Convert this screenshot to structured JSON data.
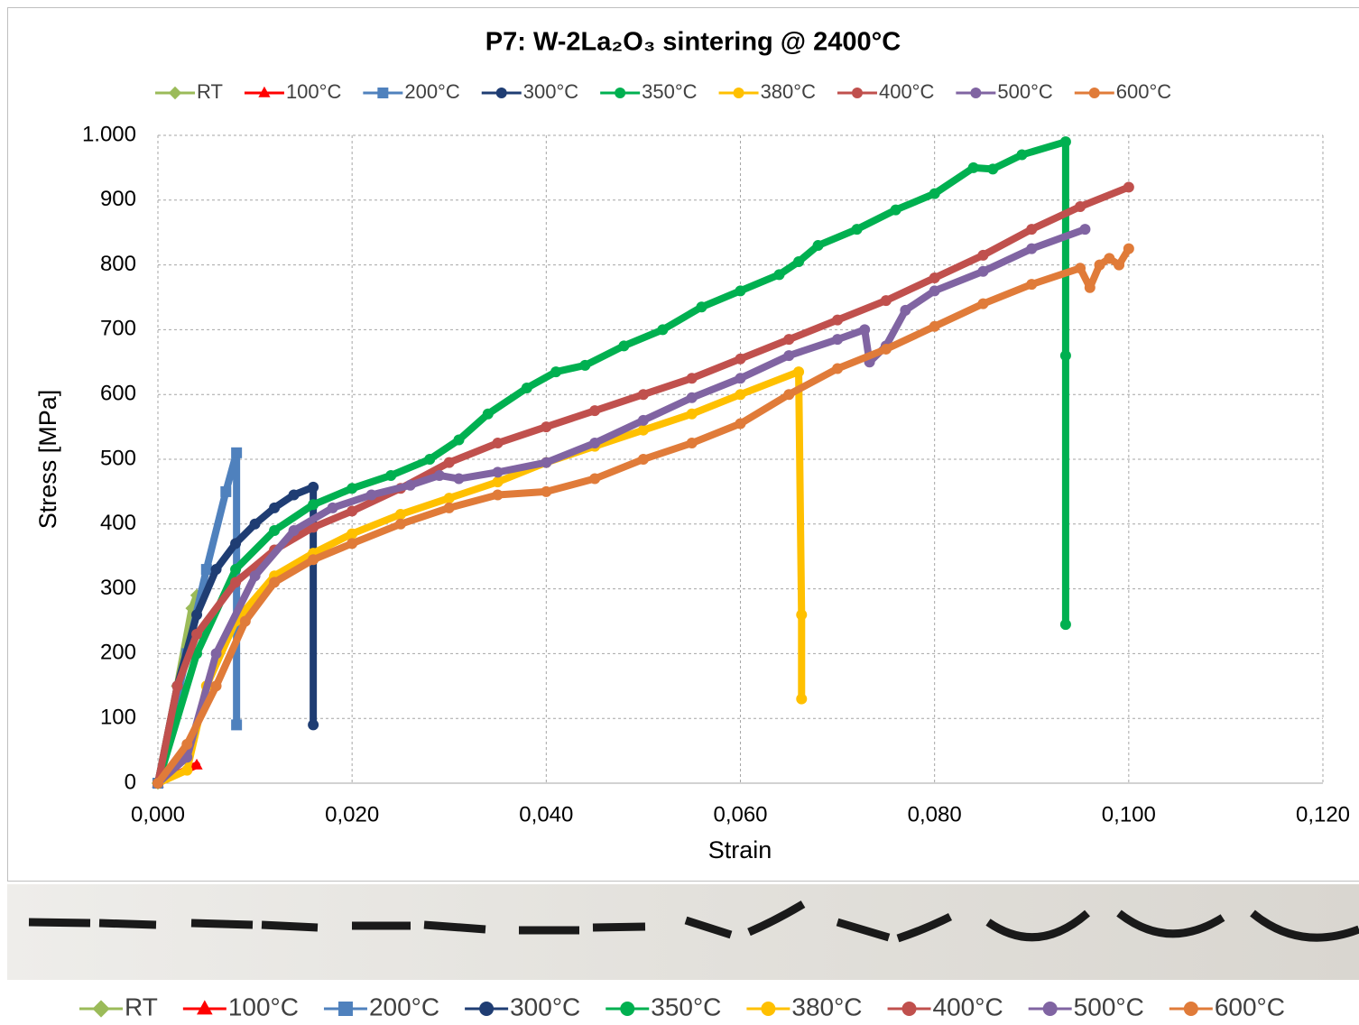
{
  "chart_data": {
    "type": "line",
    "title": "P7: W-2La₂O₃ sintering @ 2400°C",
    "x_label": "Strain",
    "y_label": "Stress [MPa]",
    "xlim": [
      0,
      0.12
    ],
    "ylim": [
      0,
      1000
    ],
    "xticks": [
      {
        "value": 0,
        "label": "0,000"
      },
      {
        "value": 0.02,
        "label": "0,020"
      },
      {
        "value": 0.04,
        "label": "0,040"
      },
      {
        "value": 0.06,
        "label": "0,060"
      },
      {
        "value": 0.08,
        "label": "0,080"
      },
      {
        "value": 0.1,
        "label": "0,100"
      },
      {
        "value": 0.12,
        "label": "0,120"
      }
    ],
    "yticks": [
      0,
      100,
      200,
      300,
      400,
      500,
      600,
      700,
      800,
      900,
      {
        "value": 1000,
        "label": "1.000"
      }
    ],
    "grid": true,
    "series": [
      {
        "name": "RT",
        "color": "#9bbb59",
        "marker": "diamond",
        "x": [
          0,
          0.002,
          0.0035,
          0.004
        ],
        "values": [
          0,
          150,
          270,
          290
        ]
      },
      {
        "name": "100°C",
        "color": "#ff0000",
        "marker": "triangle",
        "x": [
          0,
          0.004
        ],
        "values": [
          0,
          28
        ]
      },
      {
        "name": "200°C",
        "color": "#4f81bd",
        "marker": "square",
        "x": [
          0,
          0.003,
          0.005,
          0.007,
          0.0081,
          0.0081
        ],
        "values": [
          0,
          200,
          330,
          450,
          510,
          90
        ]
      },
      {
        "name": "300°C",
        "color": "#1f3d73",
        "marker": "circle",
        "x": [
          0,
          0.002,
          0.004,
          0.006,
          0.008,
          0.01,
          0.012,
          0.014,
          0.016,
          0.016
        ],
        "values": [
          0,
          150,
          260,
          330,
          370,
          400,
          425,
          445,
          457,
          90
        ]
      },
      {
        "name": "350°C",
        "color": "#00b050",
        "marker": "circle",
        "x": [
          0,
          0.004,
          0.008,
          0.012,
          0.016,
          0.02,
          0.024,
          0.028,
          0.031,
          0.034,
          0.038,
          0.041,
          0.044,
          0.048,
          0.052,
          0.056,
          0.06,
          0.064,
          0.066,
          0.068,
          0.072,
          0.076,
          0.08,
          0.084,
          0.086,
          0.089,
          0.0935,
          0.0935,
          0.0935
        ],
        "values": [
          0,
          200,
          330,
          390,
          430,
          455,
          475,
          500,
          530,
          570,
          610,
          635,
          645,
          675,
          700,
          735,
          760,
          785,
          805,
          830,
          855,
          885,
          910,
          950,
          948,
          970,
          990,
          660,
          245
        ]
      },
      {
        "name": "380°C",
        "color": "#ffc000",
        "marker": "circle",
        "x": [
          0,
          0.003,
          0.005,
          0.008,
          0.012,
          0.016,
          0.02,
          0.025,
          0.03,
          0.035,
          0.04,
          0.045,
          0.05,
          0.055,
          0.06,
          0.066,
          0.0663,
          0.0663
        ],
        "values": [
          0,
          20,
          150,
          250,
          320,
          355,
          385,
          415,
          440,
          465,
          495,
          520,
          545,
          570,
          600,
          635,
          260,
          130
        ]
      },
      {
        "name": "400°C",
        "color": "#c0504d",
        "marker": "circle",
        "x": [
          0,
          0.002,
          0.004,
          0.008,
          0.012,
          0.016,
          0.02,
          0.025,
          0.03,
          0.035,
          0.04,
          0.045,
          0.05,
          0.055,
          0.06,
          0.065,
          0.07,
          0.075,
          0.08,
          0.085,
          0.09,
          0.095,
          0.1
        ],
        "values": [
          0,
          150,
          230,
          310,
          360,
          395,
          420,
          455,
          495,
          525,
          550,
          575,
          600,
          625,
          655,
          685,
          715,
          745,
          780,
          815,
          855,
          890,
          920
        ]
      },
      {
        "name": "500°C",
        "color": "#8064a2",
        "marker": "circle",
        "x": [
          0,
          0.003,
          0.006,
          0.01,
          0.014,
          0.018,
          0.022,
          0.026,
          0.029,
          0.031,
          0.035,
          0.04,
          0.045,
          0.05,
          0.055,
          0.06,
          0.065,
          0.07,
          0.0728,
          0.0733,
          0.075,
          0.077,
          0.08,
          0.085,
          0.09,
          0.0955
        ],
        "values": [
          0,
          40,
          200,
          320,
          390,
          425,
          445,
          460,
          475,
          470,
          480,
          495,
          525,
          560,
          595,
          625,
          660,
          685,
          700,
          650,
          675,
          730,
          760,
          790,
          825,
          855
        ]
      },
      {
        "name": "600°C",
        "color": "#e07b39",
        "marker": "circle",
        "x": [
          0,
          0.003,
          0.006,
          0.009,
          0.012,
          0.016,
          0.02,
          0.025,
          0.03,
          0.035,
          0.04,
          0.045,
          0.05,
          0.055,
          0.06,
          0.065,
          0.07,
          0.075,
          0.08,
          0.085,
          0.09,
          0.095,
          0.096,
          0.097,
          0.098,
          0.099,
          0.1
        ],
        "values": [
          0,
          60,
          150,
          250,
          310,
          345,
          370,
          400,
          425,
          445,
          450,
          470,
          500,
          525,
          555,
          600,
          640,
          670,
          705,
          740,
          770,
          795,
          765,
          800,
          810,
          800,
          825
        ]
      }
    ]
  }
}
